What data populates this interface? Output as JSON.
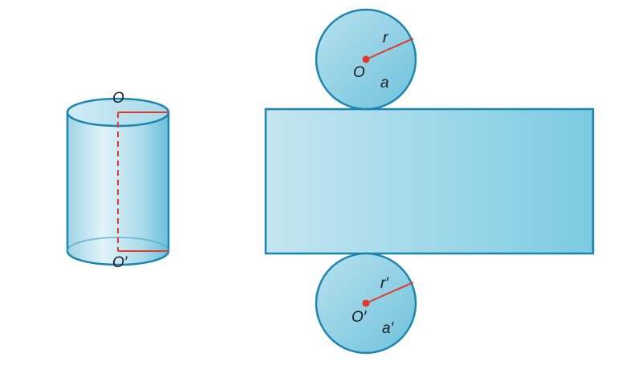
{
  "colors": {
    "stroke": "#1a86b0",
    "fill_light": "#c8e7f1",
    "fill_dark": "#79c7e0",
    "red": "#e03a2a",
    "text": "#1a1a1a"
  },
  "cylinder": {
    "top_center_label": "O",
    "bottom_center_label": "O′"
  },
  "net": {
    "top_circle": {
      "center_label": "O",
      "radius_label": "r",
      "base_label": "a"
    },
    "bottom_circle": {
      "center_label": "O′",
      "radius_label": "r′",
      "base_label": "a′"
    }
  }
}
